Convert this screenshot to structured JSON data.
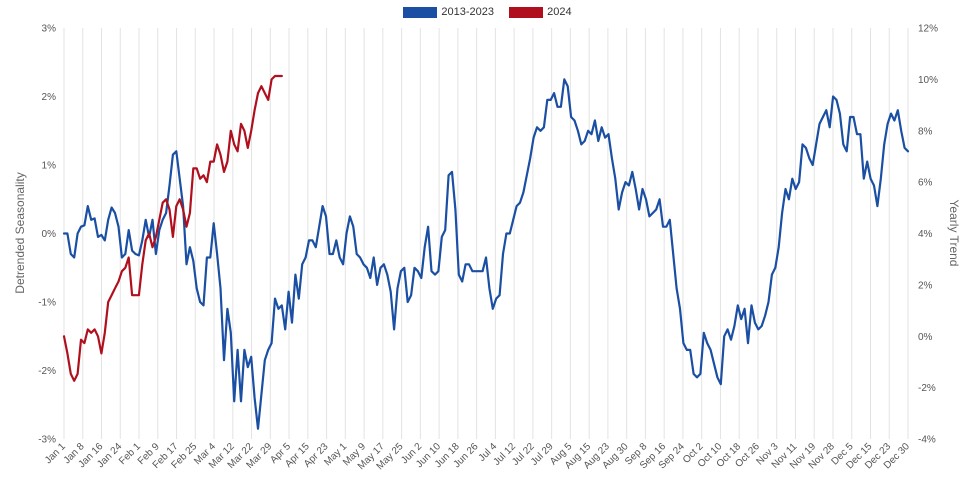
{
  "chart_data": {
    "type": "line",
    "title": "",
    "ylabel": "Detrended Seasonality",
    "y2label": "Yearly Trend",
    "xlabel": "",
    "ylim": [
      -3,
      3
    ],
    "y2lim": [
      -4,
      12
    ],
    "yticks": [
      "3%",
      "2%",
      "1%",
      "0%",
      "-1%",
      "-2%",
      "-3%"
    ],
    "y2ticks": [
      "12%",
      "10%",
      "8%",
      "6%",
      "4%",
      "2%",
      "0%",
      "-2%",
      "-4%"
    ],
    "xticks": [
      "Jan 1",
      "Jan 8",
      "Jan 16",
      "Jan 24",
      "Feb 1",
      "Feb 9",
      "Feb 17",
      "Feb 25",
      "Mar 4",
      "Mar 12",
      "Mar 22",
      "Mar 29",
      "Apr 5",
      "Apr 15",
      "Apr 23",
      "May 1",
      "May 9",
      "May 17",
      "May 25",
      "Jun 2",
      "Jun 10",
      "Jun 18",
      "Jun 26",
      "Jul 4",
      "Jul 12",
      "Jul 22",
      "Jul 29",
      "Aug 5",
      "Aug 15",
      "Aug 23",
      "Aug 30",
      "Sep 8",
      "Sep 16",
      "Sep 24",
      "Oct 2",
      "Oct 10",
      "Oct 18",
      "Oct 26",
      "Nov 3",
      "Nov 11",
      "Nov 19",
      "Nov 28",
      "Dec 5",
      "Dec 15",
      "Dec 23",
      "Dec 30"
    ],
    "grid": true,
    "legend_position": "top-center",
    "legend": [
      {
        "label": "2013-2023",
        "color": "#1a4fa3"
      },
      {
        "label": "2024",
        "color": "#b0101e"
      }
    ],
    "series": [
      {
        "name": "2013-2023",
        "color": "#1a4fa3",
        "y": [
          0.0,
          0.0,
          -0.3,
          -0.35,
          0.0,
          0.1,
          0.12,
          0.4,
          0.2,
          0.22,
          -0.05,
          -0.02,
          -0.1,
          0.2,
          0.38,
          0.3,
          0.1,
          -0.35,
          -0.3,
          0.05,
          -0.25,
          -0.3,
          -0.32,
          -0.1,
          0.2,
          -0.05,
          0.2,
          -0.3,
          0.05,
          0.2,
          0.3,
          0.7,
          1.15,
          1.2,
          0.8,
          0.4,
          -0.45,
          -0.2,
          -0.4,
          -0.8,
          -1.0,
          -1.05,
          -0.35,
          -0.35,
          0.15,
          -0.3,
          -0.8,
          -1.85,
          -1.1,
          -1.45,
          -2.45,
          -1.7,
          -2.45,
          -1.7,
          -1.95,
          -1.8,
          -2.4,
          -2.85,
          -2.35,
          -1.85,
          -1.7,
          -1.6,
          -0.95,
          -1.1,
          -1.05,
          -1.4,
          -0.85,
          -1.3,
          -0.6,
          -0.95,
          -0.45,
          -0.35,
          -0.1,
          -0.1,
          -0.2,
          0.1,
          0.4,
          0.25,
          -0.3,
          -0.3,
          -0.1,
          -0.35,
          -0.45,
          0.0,
          0.25,
          0.1,
          -0.3,
          -0.35,
          -0.45,
          -0.5,
          -0.65,
          -0.35,
          -0.75,
          -0.5,
          -0.45,
          -0.6,
          -0.85,
          -1.4,
          -0.8,
          -0.55,
          -0.5,
          -1.0,
          -0.9,
          -0.5,
          -0.55,
          -0.65,
          -0.2,
          0.1,
          -0.55,
          -0.6,
          -0.55,
          -0.05,
          0.05,
          0.85,
          0.9,
          0.35,
          -0.6,
          -0.7,
          -0.45,
          -0.45,
          -0.55,
          -0.55,
          -0.55,
          -0.55,
          -0.35,
          -0.8,
          -1.1,
          -0.95,
          -0.9,
          -0.3,
          0.0,
          0.0,
          0.2,
          0.4,
          0.45,
          0.6,
          0.85,
          1.1,
          1.4,
          1.55,
          1.5,
          1.55,
          1.95,
          1.95,
          2.05,
          1.85,
          1.85,
          2.25,
          2.15,
          1.7,
          1.65,
          1.5,
          1.3,
          1.35,
          1.5,
          1.45,
          1.65,
          1.35,
          1.55,
          1.4,
          1.45,
          1.1,
          0.8,
          0.35,
          0.6,
          0.75,
          0.7,
          0.9,
          0.65,
          0.35,
          0.65,
          0.5,
          0.25,
          0.3,
          0.35,
          0.5,
          0.1,
          0.1,
          0.2,
          -0.3,
          -0.8,
          -1.1,
          -1.6,
          -1.7,
          -1.7,
          -2.05,
          -2.1,
          -2.05,
          -1.45,
          -1.6,
          -1.7,
          -1.9,
          -2.1,
          -2.2,
          -1.5,
          -1.4,
          -1.55,
          -1.35,
          -1.05,
          -1.25,
          -1.1,
          -1.6,
          -1.05,
          -1.3,
          -1.4,
          -1.35,
          -1.2,
          -1.0,
          -0.6,
          -0.5,
          -0.2,
          0.3,
          0.65,
          0.5,
          0.8,
          0.65,
          0.75,
          1.3,
          1.25,
          1.1,
          1.0,
          1.3,
          1.6,
          1.7,
          1.8,
          1.55,
          2.0,
          1.95,
          1.75,
          1.3,
          1.2,
          1.7,
          1.7,
          1.45,
          1.45,
          0.8,
          1.05,
          0.8,
          0.7,
          0.4,
          0.8,
          1.3,
          1.6,
          1.75,
          1.65,
          1.8,
          1.5,
          1.25,
          1.2
        ]
      },
      {
        "name": "2024",
        "color": "#b0101e",
        "y": [
          -1.5,
          -1.75,
          -2.05,
          -2.15,
          -2.05,
          -1.55,
          -1.6,
          -1.4,
          -1.45,
          -1.4,
          -1.5,
          -1.75,
          -1.45,
          -1.0,
          -0.9,
          -0.8,
          -0.7,
          -0.55,
          -0.5,
          -0.35,
          -0.9,
          -0.9,
          -0.9,
          -0.45,
          -0.1,
          0.0,
          -0.2,
          -0.05,
          0.2,
          0.45,
          0.5,
          0.35,
          -0.05,
          0.4,
          0.5,
          0.35,
          0.1,
          0.3,
          0.95,
          0.95,
          0.8,
          0.85,
          0.75,
          1.05,
          1.05,
          1.3,
          1.15,
          0.9,
          1.05,
          1.5,
          1.3,
          1.2,
          1.6,
          1.5,
          1.25,
          1.5,
          1.8,
          2.05,
          2.15,
          2.05,
          1.95,
          2.25,
          2.3,
          2.3,
          2.3
        ]
      }
    ]
  }
}
